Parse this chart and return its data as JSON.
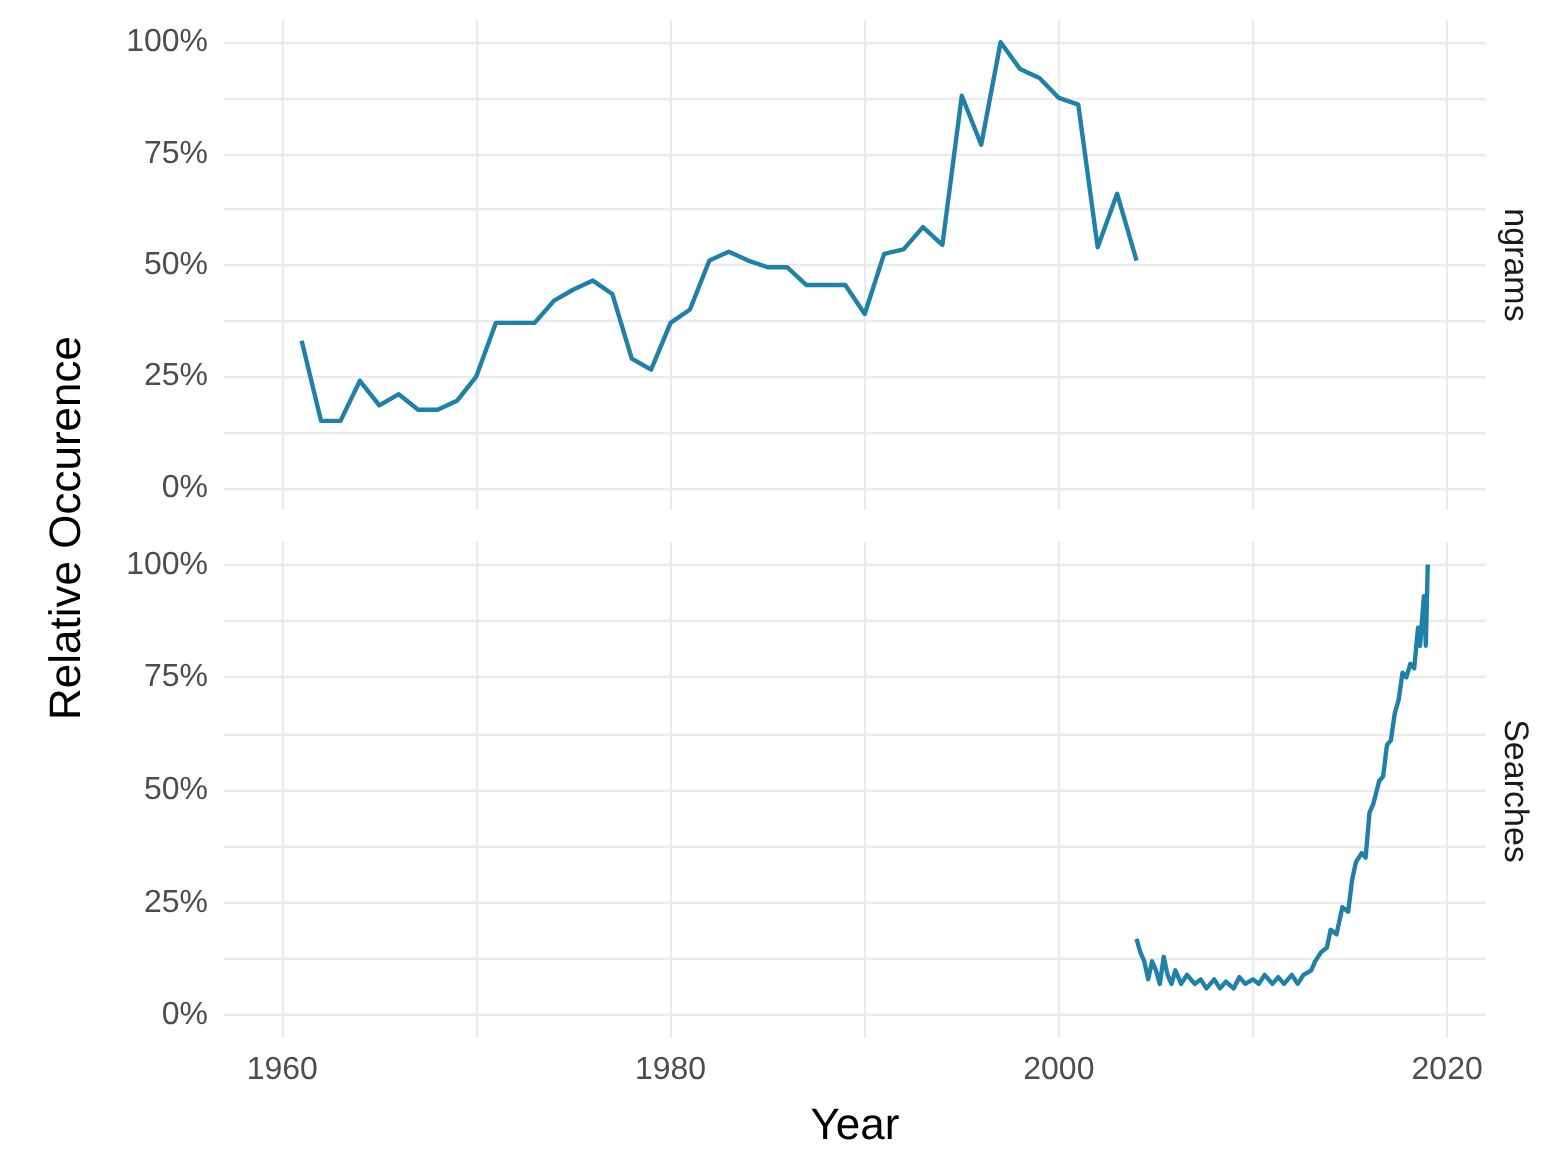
{
  "chart_data": [
    {
      "type": "line",
      "title": "ngrams",
      "ylabel": "Relative Occurence",
      "tick_labels": "y",
      "grid": true,
      "x": [
        1961,
        1962,
        1963,
        1964,
        1965,
        1966,
        1967,
        1968,
        1969,
        1970,
        1971,
        1972,
        1973,
        1974,
        1975,
        1976,
        1977,
        1978,
        1979,
        1980,
        1981,
        1982,
        1983,
        1984,
        1985,
        1986,
        1987,
        1988,
        1989,
        1990,
        1991,
        1992,
        1993,
        1994,
        1995,
        1996,
        1997,
        1998,
        1999,
        2000,
        2001,
        2002,
        2003,
        2004
      ],
      "series": [
        {
          "color": "#2180a8",
          "values": [
            33,
            15,
            15,
            24,
            18.5,
            21,
            17.5,
            17.5,
            19.5,
            25,
            37,
            37,
            37,
            42,
            44.5,
            46.5,
            43.5,
            29,
            26.5,
            37,
            40,
            51,
            53,
            51,
            49.5,
            49.5,
            45.5,
            45.5,
            45.5,
            39,
            52.5,
            53.5,
            58.5,
            54.5,
            88,
            77,
            100,
            94,
            92,
            87.5,
            86,
            54,
            66,
            51
          ]
        }
      ],
      "xlim": [
        1957,
        2022
      ],
      "xticks": [
        {
          "value": 1960,
          "label": null
        },
        {
          "value": 1970,
          "label": null
        },
        {
          "value": 1980,
          "label": null
        },
        {
          "value": 1990,
          "label": null
        },
        {
          "value": 2000,
          "label": null
        },
        {
          "value": 2010,
          "label": null
        },
        {
          "value": 2020,
          "label": null
        }
      ],
      "ylim": [
        -5,
        105
      ],
      "yticks": [
        {
          "value": 0,
          "label": "0%"
        },
        {
          "value": 12.5,
          "label": null
        },
        {
          "value": 25,
          "label": "25%"
        },
        {
          "value": 37.5,
          "label": null
        },
        {
          "value": 50,
          "label": "50%"
        },
        {
          "value": 62.5,
          "label": null
        },
        {
          "value": 75,
          "label": "75%"
        },
        {
          "value": 87.5,
          "label": null
        },
        {
          "value": 100,
          "label": "100%"
        }
      ]
    },
    {
      "type": "line",
      "title": "Searches",
      "xlabel": "Year",
      "grid": true,
      "x": [
        2004.0,
        2004.2,
        2004.4,
        2004.6,
        2004.8,
        2005.0,
        2005.2,
        2005.4,
        2005.6,
        2005.8,
        2006.0,
        2006.3,
        2006.6,
        2007.0,
        2007.3,
        2007.6,
        2008.0,
        2008.3,
        2008.6,
        2009.0,
        2009.3,
        2009.6,
        2010.0,
        2010.3,
        2010.6,
        2011.0,
        2011.3,
        2011.6,
        2012.0,
        2012.3,
        2012.6,
        2013.0,
        2013.2,
        2013.5,
        2013.8,
        2014.0,
        2014.3,
        2014.6,
        2014.9,
        2015.1,
        2015.3,
        2015.6,
        2015.8,
        2016.0,
        2016.2,
        2016.5,
        2016.7,
        2016.9,
        2017.1,
        2017.3,
        2017.5,
        2017.7,
        2017.9,
        2018.1,
        2018.3,
        2018.5,
        2018.6,
        2018.8,
        2018.9,
        2019.0
      ],
      "series": [
        {
          "color": "#2180a8",
          "values": [
            17,
            14,
            12,
            8,
            12,
            10,
            7,
            13,
            9,
            7,
            10,
            7,
            9,
            7,
            8,
            6,
            8,
            6,
            7.5,
            6,
            8.5,
            7,
            8,
            7,
            9,
            7,
            8.5,
            7,
            9,
            7,
            9,
            10,
            12,
            14,
            15,
            19,
            18,
            24,
            23,
            30,
            34,
            36,
            35,
            45,
            47,
            52,
            53,
            60,
            61,
            67,
            70,
            76,
            75,
            78,
            77,
            86,
            82,
            93,
            82,
            100
          ]
        }
      ],
      "xlim": [
        1957,
        2022
      ],
      "xticks": [
        {
          "value": 1960,
          "label": "1960"
        },
        {
          "value": 1970,
          "label": null
        },
        {
          "value": 1980,
          "label": "1980"
        },
        {
          "value": 1990,
          "label": null
        },
        {
          "value": 2000,
          "label": "2000"
        },
        {
          "value": 2010,
          "label": null
        },
        {
          "value": 2020,
          "label": "2020"
        }
      ],
      "ylim": [
        -5,
        105
      ],
      "yticks": [
        {
          "value": 0,
          "label": "0%"
        },
        {
          "value": 12.5,
          "label": null
        },
        {
          "value": 25,
          "label": "25%"
        },
        {
          "value": 37.5,
          "label": null
        },
        {
          "value": 50,
          "label": "50%"
        },
        {
          "value": 62.5,
          "label": null
        },
        {
          "value": 75,
          "label": "75%"
        },
        {
          "value": 87.5,
          "label": null
        },
        {
          "value": 100,
          "label": "100%"
        }
      ]
    }
  ]
}
